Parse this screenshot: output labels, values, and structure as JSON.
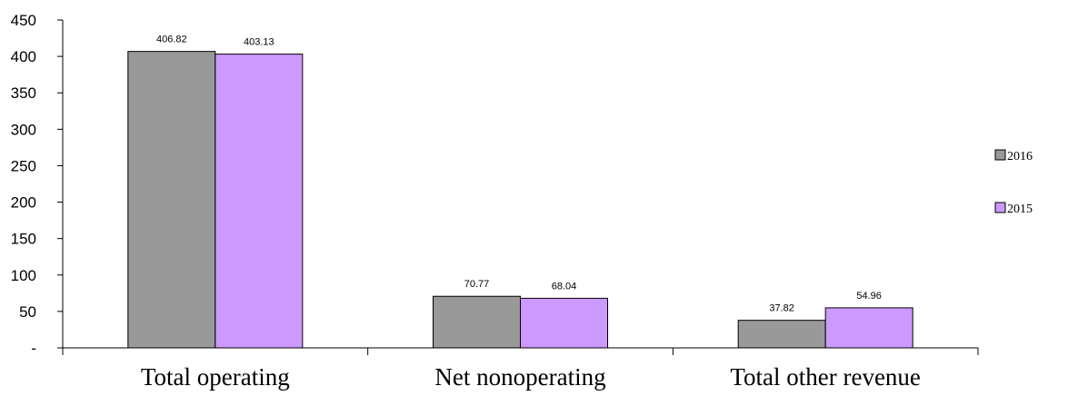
{
  "chart_data": {
    "type": "bar",
    "title": "",
    "xlabel": "",
    "ylabel": "",
    "categories": [
      "Total operating",
      "Net nonoperating",
      "Total other revenue"
    ],
    "series": [
      {
        "name": "2016",
        "color": "#999999",
        "values": [
          406.82,
          70.77,
          37.82
        ],
        "labels": [
          "406.82",
          "70.77",
          "37.82"
        ]
      },
      {
        "name": "2015",
        "color": "#cc99ff",
        "values": [
          403.13,
          68.04,
          54.96
        ],
        "labels": [
          "403.13",
          "68.04",
          "54.96"
        ]
      }
    ],
    "ylim": [
      0,
      450
    ],
    "yticks": [
      0,
      50,
      100,
      150,
      200,
      250,
      300,
      350,
      400,
      450
    ],
    "ytick_labels": [
      "-",
      "50",
      "100",
      "150",
      "200",
      "250",
      "300",
      "350",
      "400",
      "450"
    ],
    "grid": false,
    "legend_position": "right"
  }
}
